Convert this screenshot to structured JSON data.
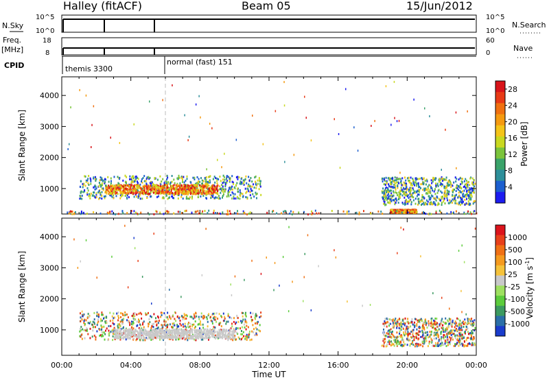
{
  "header": {
    "station": "Halley (fitACF)",
    "beam": "Beam 05",
    "date": "15/Jun/2012"
  },
  "left_labels": {
    "nsky": "N.Sky",
    "freq_top": "Freq.",
    "freq_unit": "[MHz]",
    "cpid": "CPID"
  },
  "right_labels": {
    "nsearch": "N.Search",
    "nave": "Nave"
  },
  "nsky_ticks": [
    "10^5",
    "10^0"
  ],
  "nsearch_ticks": [
    "10^5",
    "10^0"
  ],
  "freq_ticks": [
    "18",
    "8"
  ],
  "nave_ticks": [
    "60",
    "0"
  ],
  "cpid_labels": [
    {
      "text": "themis 3300",
      "hour": 0.1
    },
    {
      "text": "normal (fast) 151",
      "hour": 6.0
    }
  ],
  "chart_data": [
    {
      "type": "heatmap",
      "title": "",
      "xlabel": "",
      "ylabel": "Slant Range [km]",
      "xlim": [
        0,
        24
      ],
      "ylim": [
        180,
        4600
      ],
      "yticks": [
        "1000",
        "2000",
        "3000",
        "4000"
      ],
      "colorbar": {
        "label": "Power [dB]",
        "ticks": [
          "4",
          "8",
          "12",
          "16",
          "20",
          "24",
          "28"
        ],
        "range": [
          0,
          30
        ],
        "colors": [
          "#1c1cf0",
          "#1c5fcf",
          "#2d8f9a",
          "#3aa36a",
          "#7bc43c",
          "#c9d820",
          "#f4c419",
          "#f59a10",
          "#f07010",
          "#e83a16",
          "#d8141a"
        ]
      },
      "echo_regions": [
        {
          "t0": 1.0,
          "t1": 11.5,
          "r0": 700,
          "r1": 1450,
          "level": "mixed"
        },
        {
          "t0": 2.5,
          "t1": 9.0,
          "r0": 850,
          "r1": 1150,
          "level": "high"
        },
        {
          "t0": 18.5,
          "t1": 23.9,
          "r0": 500,
          "r1": 1400,
          "level": "mixed"
        },
        {
          "t0": 19.0,
          "t1": 20.5,
          "r0": 250,
          "r1": 350,
          "level": "high"
        },
        {
          "t0": 0.0,
          "t1": 24.0,
          "r0": 200,
          "r1": 320,
          "level": "ground"
        }
      ]
    },
    {
      "type": "heatmap",
      "title": "",
      "xlabel": "Time UT",
      "ylabel": "Slant Range [km]",
      "xlim": [
        0,
        24
      ],
      "ylim": [
        180,
        4600
      ],
      "xticks": [
        "00:00",
        "04:00",
        "08:00",
        "12:00",
        "16:00",
        "20:00",
        "00:00"
      ],
      "yticks": [
        "1000",
        "2000",
        "3000",
        "4000"
      ],
      "colorbar": {
        "label": "Velocity [m s^-1]",
        "ticks": [
          "1000",
          "500",
          "100",
          "25",
          "-25",
          "-100",
          "-500",
          "-1000"
        ],
        "range": [
          -1000,
          1000
        ],
        "colors": [
          "#1a3ccc",
          "#2b6fa8",
          "#3c9a60",
          "#5ccc3c",
          "#9ee060",
          "#c9c9c9",
          "#f5c23a",
          "#f59a1e",
          "#f07014",
          "#e8401a",
          "#dc141c"
        ]
      },
      "echo_regions": [
        {
          "t0": 1.0,
          "t1": 11.5,
          "r0": 700,
          "r1": 1600,
          "level": "mixed"
        },
        {
          "t0": 3.0,
          "t1": 10.0,
          "r0": 750,
          "r1": 1050,
          "level": "low"
        },
        {
          "t0": 18.5,
          "t1": 23.9,
          "r0": 500,
          "r1": 1400,
          "level": "mixed"
        }
      ]
    }
  ]
}
